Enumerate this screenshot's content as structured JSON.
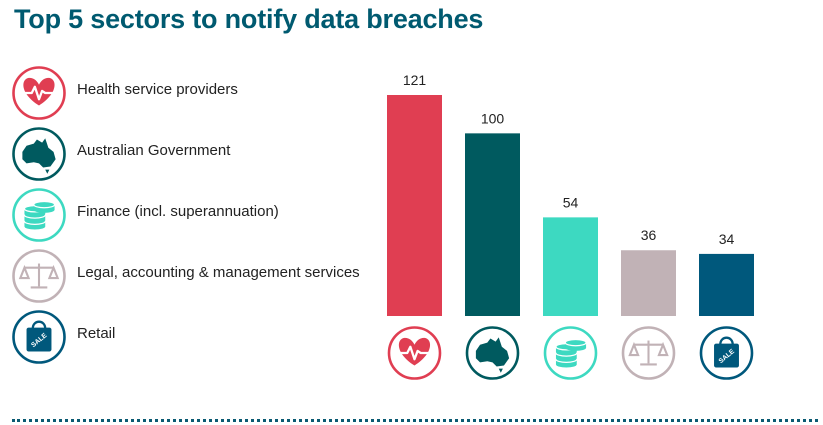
{
  "title": "Top 5 sectors to notify data breaches",
  "legend": [
    {
      "label": "Health service providers",
      "icon": "heart-pulse-icon",
      "color": "#e03e52"
    },
    {
      "label": "Australian Government",
      "icon": "australia-map-icon",
      "color": "#005a5f"
    },
    {
      "label": "Finance (incl. superannuation)",
      "icon": "coins-icon",
      "color": "#3dd9c1"
    },
    {
      "label": "Legal, accounting & management services",
      "icon": "scales-icon",
      "color": "#c1b2b6"
    },
    {
      "label": "Retail",
      "icon": "shopping-bag-icon",
      "color": "#00587c"
    }
  ],
  "icon_text": {
    "sale": "SALE"
  },
  "chart_data": {
    "type": "bar",
    "categories": [
      "Health service providers",
      "Australian Government",
      "Finance (incl. superannuation)",
      "Legal, accounting & management services",
      "Retail"
    ],
    "values": [
      121,
      100,
      54,
      36,
      34
    ],
    "colors": [
      "#e03e52",
      "#005a5f",
      "#3dd9c1",
      "#c1b2b6",
      "#00587c"
    ],
    "icons": [
      "heart-pulse-icon",
      "australia-map-icon",
      "coins-icon",
      "scales-icon",
      "shopping-bag-icon"
    ],
    "data_labels": [
      "121",
      "100",
      "54",
      "36",
      "34"
    ],
    "ylim": [
      0,
      121
    ],
    "grid": false,
    "legend_position": "left"
  }
}
